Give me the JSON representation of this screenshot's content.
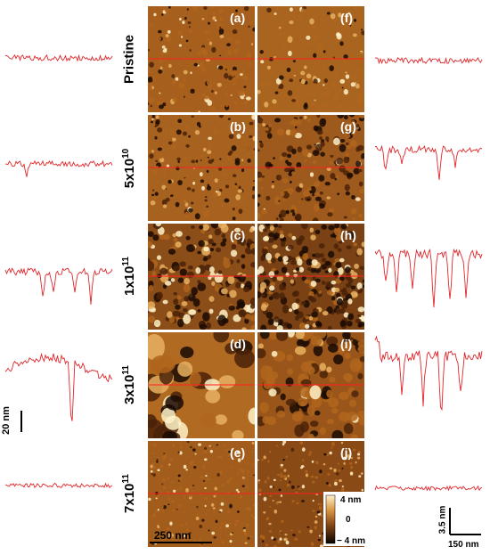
{
  "rows": [
    {
      "label_base": "Pristine",
      "label_exp": "",
      "left_panel": "(a)",
      "right_panel": "(f)"
    },
    {
      "label_base": "5x10",
      "label_exp": "10",
      "left_panel": "(b)",
      "right_panel": "(g)"
    },
    {
      "label_base": "1x10",
      "label_exp": "11",
      "left_panel": "(c)",
      "right_panel": "(h)"
    },
    {
      "label_base": "3x10",
      "label_exp": "11",
      "left_panel": "(d)",
      "right_panel": "(i)"
    },
    {
      "label_base": "7x10",
      "label_exp": "11",
      "left_panel": "(e)",
      "right_panel": "(j)"
    }
  ],
  "scale_bars": {
    "image": "250 nm",
    "profile_vertical_left": "20 nm",
    "profile_vertical_right": "3.5 nm",
    "profile_horizontal_right": "150 nm"
  },
  "colorbar": {
    "max": "4 nm",
    "mid": "0",
    "min": "− 4 nm"
  },
  "colors": {
    "profile_line": "#e0262a",
    "afm_dark": "#1a0a02",
    "afm_mid": "#b0651c",
    "afm_light": "#fff2c8"
  }
}
